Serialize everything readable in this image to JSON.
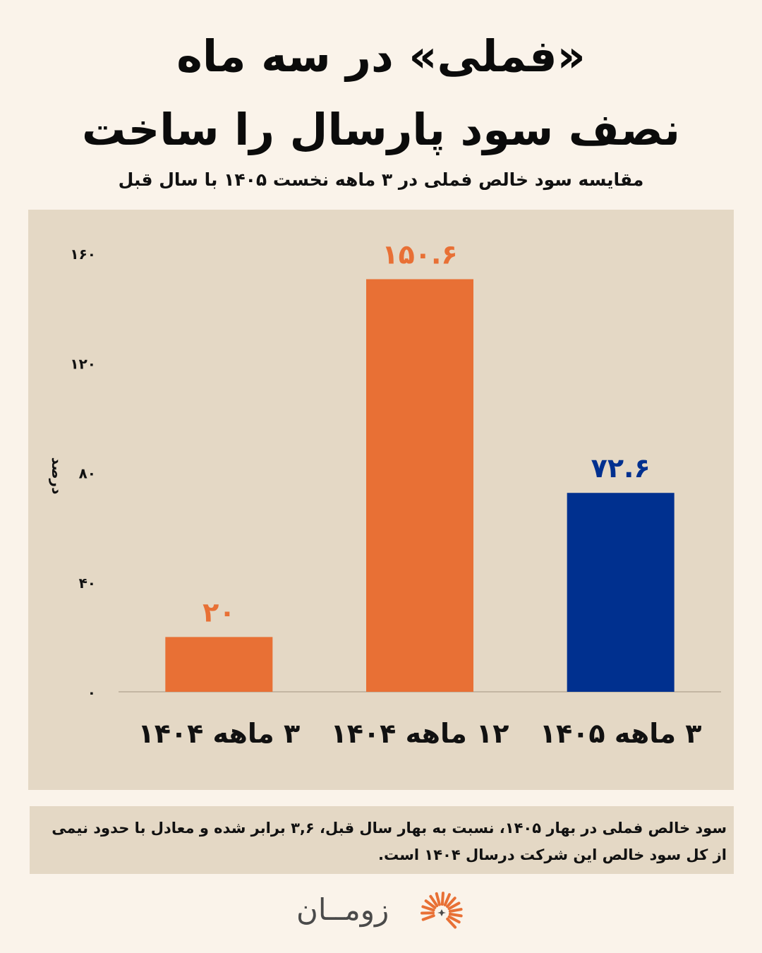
{
  "title": {
    "line1": "«فملی» در سه ماه",
    "line2": "نصف سود پارسال را ساخت"
  },
  "subtitle": "مقایسه سود خالص فملی در ۳ ماهه نخست ۱۴۰۵ با سال قبل",
  "chart_data": {
    "type": "bar",
    "ylabel": "درصد",
    "ylim": [
      0,
      160
    ],
    "yticks": [
      "۰",
      "۴۰",
      "۸۰",
      "۱۲۰",
      "۱۶۰"
    ],
    "ytick_values": [
      0,
      40,
      80,
      120,
      160
    ],
    "categories": [
      "۳ ماهه ۱۴۰۴",
      "۱۲ ماهه ۱۴۰۴",
      "۳ ماهه ۱۴۰۵"
    ],
    "values": [
      20,
      150.6,
      72.6
    ],
    "value_labels": [
      "۲۰",
      "۱۵۰.۶",
      "۷۲.۶"
    ],
    "colors": [
      "#e87035",
      "#e87035",
      "#00308f"
    ],
    "grid": false
  },
  "note": "سود خالص فملی در بهار ۱۴۰۵، نسبت به بهار سال قبل، ۳,۶ برابر شده و معادل با حدود نیمی از کل سود خالص این شرکت درسال ۱۴۰۴ است.",
  "logo": {
    "text": "زومــان",
    "mark_color": "#e87035"
  }
}
